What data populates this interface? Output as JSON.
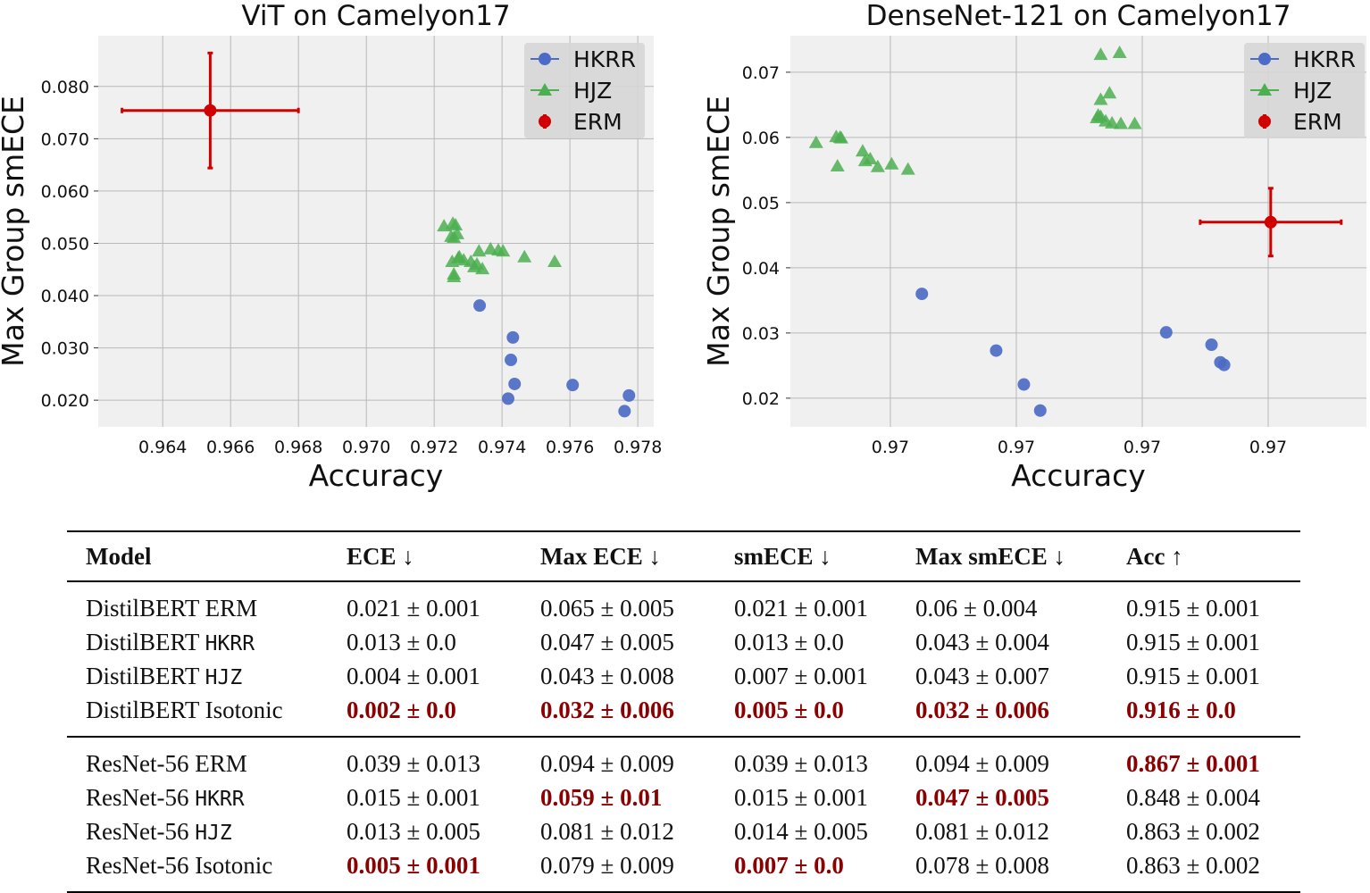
{
  "chart_data": [
    {
      "type": "scatter",
      "title": "ViT on Camelyon17",
      "xlabel": "Accuracy",
      "ylabel": "Max Group smECE",
      "xlim": [
        0.9621,
        0.97847
      ],
      "ylim": [
        0.0149,
        0.0897
      ],
      "x_ticks": [
        0.964,
        0.966,
        0.968,
        0.97,
        0.972,
        0.974,
        0.976,
        0.978
      ],
      "x_tick_labels": [
        "0.964",
        "0.966",
        "0.968",
        "0.970",
        "0.972",
        "0.974",
        "0.976",
        "0.978"
      ],
      "y_ticks": [
        0.02,
        0.03,
        0.04,
        0.05,
        0.06,
        0.07,
        0.08
      ],
      "y_tick_labels": [
        "0.020",
        "0.030",
        "0.040",
        "0.050",
        "0.060",
        "0.070",
        "0.080"
      ],
      "grid": true,
      "legend_position": "top-right",
      "legend": [
        "HKRR",
        "HJZ",
        "ERM"
      ],
      "series": [
        {
          "name": "HKRR",
          "marker": "circle",
          "color": "#4c6bc6",
          "x": [
            0.97334,
            0.97432,
            0.97426,
            0.97437,
            0.97608,
            0.97418,
            0.97774,
            0.97761
          ],
          "y": [
            0.0381,
            0.032,
            0.0277,
            0.0231,
            0.0229,
            0.0203,
            0.0209,
            0.0179
          ]
        },
        {
          "name": "HJZ",
          "marker": "triangle",
          "color": "#4caf50",
          "x": [
            0.97229,
            0.97255,
            0.97263,
            0.9725,
            0.97258,
            0.97268,
            0.97253,
            0.97271,
            0.97287,
            0.97258,
            0.97258,
            0.97308,
            0.97318,
            0.97332,
            0.97326,
            0.97342,
            0.97366,
            0.97389,
            0.97403,
            0.97466,
            0.97555,
            0.97274
          ],
          "y": [
            0.0533,
            0.0538,
            0.0535,
            0.0513,
            0.0511,
            0.0518,
            0.0465,
            0.0472,
            0.0468,
            0.0436,
            0.0441,
            0.0465,
            0.0455,
            0.0485,
            0.046,
            0.0451,
            0.0489,
            0.0487,
            0.0485,
            0.0474,
            0.0465,
            0.0474
          ]
        },
        {
          "name": "ERM",
          "marker": "errorbar",
          "color": "#d00000",
          "x": [
            0.9654
          ],
          "y": [
            0.0754
          ],
          "xerr": [
            0.0026
          ],
          "yerr": [
            0.011
          ]
        }
      ]
    },
    {
      "type": "scatter",
      "title": "DenseNet-121 on Camelyon17",
      "xlabel": "Accuracy",
      "ylabel": "Max Group smECE",
      "xlim": [
        0.206,
        4.78
      ],
      "ylim": [
        0.0156,
        0.0756
      ],
      "x_ticks": [
        1,
        2,
        3,
        4
      ],
      "x_tick_labels": [
        "0.97",
        "0.97",
        "0.97",
        "0.97"
      ],
      "y_ticks": [
        0.02,
        0.03,
        0.04,
        0.05,
        0.06,
        0.07
      ],
      "y_tick_labels": [
        "0.02",
        "0.03",
        "0.04",
        "0.05",
        "0.06",
        "0.07"
      ],
      "grid": true,
      "legend_position": "top-right",
      "legend": [
        "HKRR",
        "HJZ",
        "ERM"
      ],
      "series": [
        {
          "name": "HKRR",
          "marker": "circle",
          "color": "#4c6bc6",
          "x": [
            1.25,
            1.84,
            2.06,
            2.19,
            3.19,
            3.55,
            3.62,
            3.65
          ],
          "y": [
            0.036,
            0.0273,
            0.0221,
            0.0181,
            0.0301,
            0.0282,
            0.0255,
            0.0251
          ]
        },
        {
          "name": "HJZ",
          "marker": "triangle",
          "color": "#4caf50",
          "x": [
            0.41,
            0.57,
            0.6,
            0.61,
            0.58,
            0.78,
            0.8,
            0.84,
            0.9,
            1.01,
            1.14,
            2.67,
            2.82,
            2.74,
            2.67,
            2.65,
            2.67,
            2.71,
            2.76,
            2.83,
            2.94,
            2.64
          ],
          "y": [
            0.0592,
            0.0601,
            0.06,
            0.0599,
            0.0556,
            0.0579,
            0.0564,
            0.0567,
            0.0555,
            0.0559,
            0.0551,
            0.0727,
            0.073,
            0.0668,
            0.0658,
            0.0634,
            0.0632,
            0.0625,
            0.0622,
            0.0621,
            0.0621,
            0.063
          ]
        },
        {
          "name": "ERM",
          "marker": "errorbar",
          "color": "#d00000",
          "x": [
            4.02
          ],
          "y": [
            0.047
          ],
          "xerr": [
            0.56
          ],
          "yerr": [
            0.0052
          ]
        }
      ]
    }
  ],
  "table": {
    "headers": [
      "Model",
      "ECE ↓",
      "Max ECE ↓",
      "smECE ↓",
      "Max smECE ↓",
      "Acc ↑"
    ],
    "groups": [
      [
        {
          "base": "DistilBERT ",
          "mono": "",
          "plain": "ERM",
          "cells": [
            {
              "t": "0.021 ± 0.001"
            },
            {
              "t": "0.065 ± 0.005"
            },
            {
              "t": "0.021 ± 0.001"
            },
            {
              "t": "0.06 ± 0.004"
            },
            {
              "t": "0.915 ± 0.001"
            }
          ]
        },
        {
          "base": "DistilBERT ",
          "mono": "HKRR",
          "plain": "",
          "cells": [
            {
              "t": "0.013 ± 0.0"
            },
            {
              "t": "0.047 ± 0.005"
            },
            {
              "t": "0.013 ± 0.0"
            },
            {
              "t": "0.043 ± 0.004"
            },
            {
              "t": "0.915 ± 0.001"
            }
          ]
        },
        {
          "base": "DistilBERT ",
          "mono": "HJZ",
          "plain": "",
          "cells": [
            {
              "t": "0.004 ± 0.001"
            },
            {
              "t": "0.043 ± 0.008"
            },
            {
              "t": "0.007 ± 0.001"
            },
            {
              "t": "0.043 ± 0.007"
            },
            {
              "t": "0.915 ± 0.001"
            }
          ]
        },
        {
          "base": "DistilBERT ",
          "mono": "",
          "plain": "Isotonic",
          "cells": [
            {
              "t": "0.002 ± 0.0",
              "best": true
            },
            {
              "t": "0.032 ± 0.006",
              "best": true
            },
            {
              "t": "0.005 ± 0.0",
              "best": true
            },
            {
              "t": "0.032 ± 0.006",
              "best": true
            },
            {
              "t": "0.916 ± 0.0",
              "best": true
            }
          ]
        }
      ],
      [
        {
          "base": "ResNet-56 ",
          "mono": "",
          "plain": "ERM",
          "cells": [
            {
              "t": "0.039 ± 0.013"
            },
            {
              "t": "0.094 ± 0.009"
            },
            {
              "t": "0.039 ± 0.013"
            },
            {
              "t": "0.094 ± 0.009"
            },
            {
              "t": "0.867 ± 0.001",
              "best": true
            }
          ]
        },
        {
          "base": "ResNet-56 ",
          "mono": "HKRR",
          "plain": "",
          "cells": [
            {
              "t": "0.015 ± 0.001"
            },
            {
              "t": "0.059 ± 0.01",
              "best": true
            },
            {
              "t": "0.015 ± 0.001"
            },
            {
              "t": "0.047 ± 0.005",
              "best": true
            },
            {
              "t": "0.848 ± 0.004"
            }
          ]
        },
        {
          "base": "ResNet-56 ",
          "mono": "HJZ",
          "plain": "",
          "cells": [
            {
              "t": "0.013 ± 0.005"
            },
            {
              "t": "0.081 ± 0.012"
            },
            {
              "t": "0.014 ± 0.005"
            },
            {
              "t": "0.081 ± 0.012"
            },
            {
              "t": "0.863 ± 0.002"
            }
          ]
        },
        {
          "base": "ResNet-56 ",
          "mono": "",
          "plain": "Isotonic",
          "cells": [
            {
              "t": "0.005 ± 0.001",
              "best": true
            },
            {
              "t": "0.079 ± 0.009"
            },
            {
              "t": "0.007 ± 0.0",
              "best": true
            },
            {
              "t": "0.078 ± 0.008"
            },
            {
              "t": "0.863 ± 0.002"
            }
          ]
        }
      ]
    ],
    "best_color": "#8b0000"
  }
}
